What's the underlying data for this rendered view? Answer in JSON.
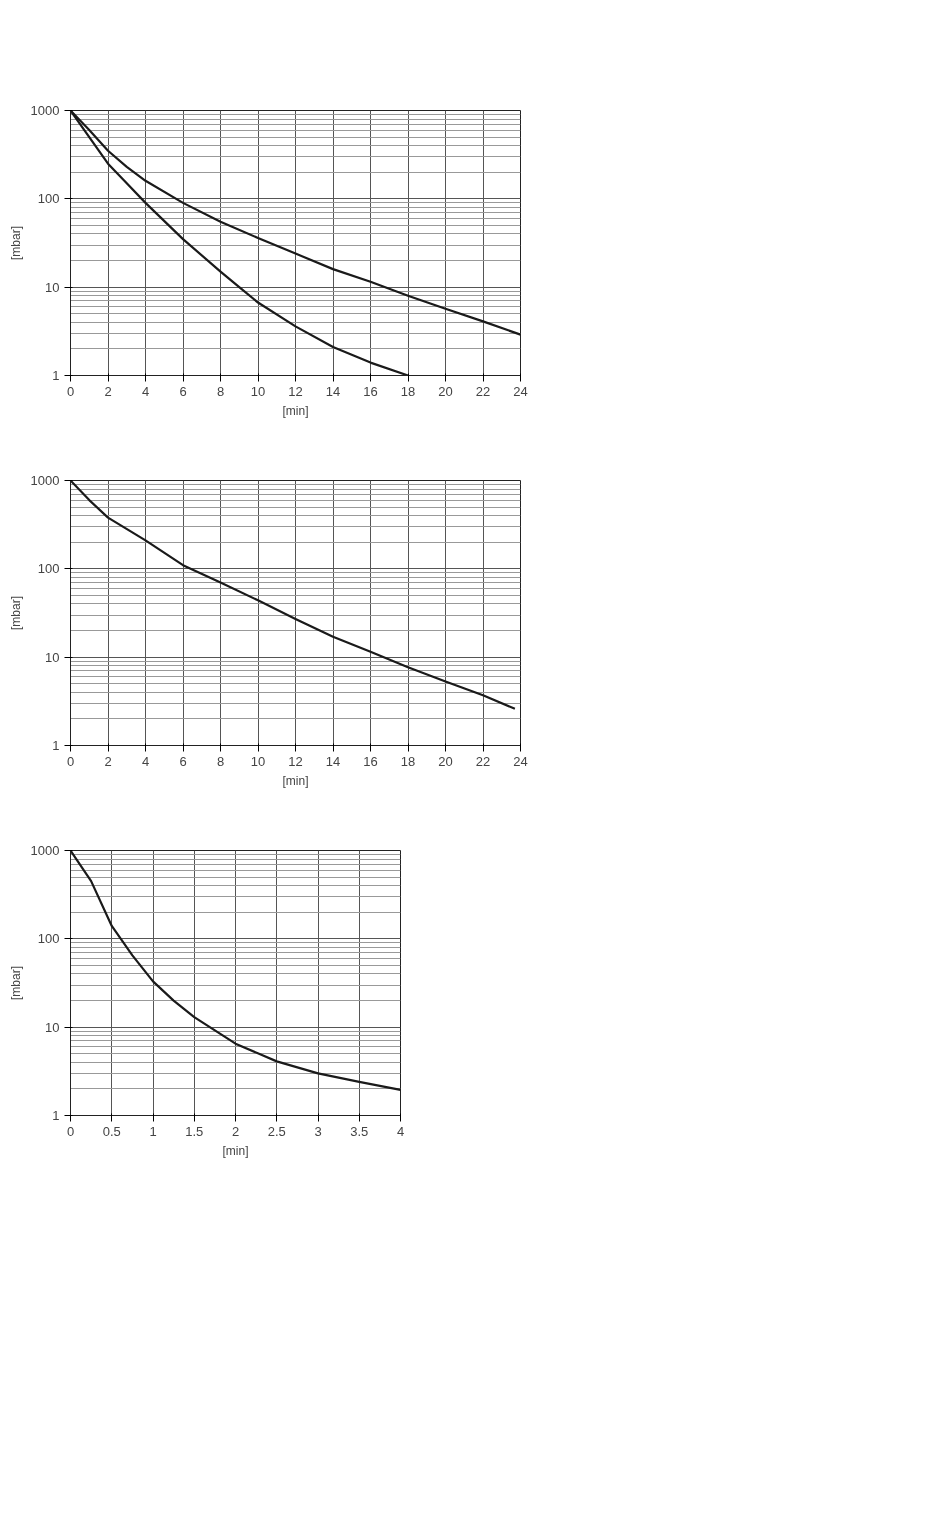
{
  "chart_data": [
    {
      "type": "line",
      "xlabel": "[min]",
      "ylabel": "[mbar]",
      "log": "y",
      "grid": true,
      "xlim": [
        0,
        24
      ],
      "ylim": [
        1,
        1000
      ],
      "xticks": [
        0,
        2,
        4,
        6,
        8,
        10,
        12,
        14,
        16,
        18,
        20,
        22,
        24
      ],
      "yticks": [
        1,
        10,
        100,
        1000
      ],
      "series": [
        {
          "color": "#1a1a1a",
          "x": [
            0,
            1,
            2,
            3,
            4,
            6,
            8,
            10,
            12,
            14,
            16,
            18,
            20,
            22,
            24
          ],
          "values": [
            1000,
            600,
            350,
            230,
            160,
            90,
            55,
            36,
            24,
            16,
            11.5,
            8,
            5.7,
            4.1,
            2.9
          ]
        },
        {
          "color": "#1a1a1a",
          "x": [
            0,
            1,
            2,
            3,
            4,
            6,
            8,
            9,
            10,
            12,
            14,
            16,
            18
          ],
          "values": [
            1000,
            500,
            250,
            150,
            90,
            35,
            15,
            10,
            6.7,
            3.6,
            2.1,
            1.4,
            1.0
          ]
        }
      ]
    },
    {
      "type": "line",
      "xlabel": "[min]",
      "ylabel": "[mbar]",
      "log": "y",
      "grid": true,
      "xlim": [
        0,
        24
      ],
      "ylim": [
        1,
        1000
      ],
      "xticks": [
        0,
        2,
        4,
        6,
        8,
        10,
        12,
        14,
        16,
        18,
        20,
        22,
        24
      ],
      "yticks": [
        1,
        10,
        100,
        1000
      ],
      "series": [
        {
          "color": "#1a1a1a",
          "x": [
            0,
            1,
            2,
            4,
            6,
            8,
            10,
            12,
            14,
            16,
            18,
            20,
            22,
            23.7
          ],
          "values": [
            1000,
            600,
            380,
            210,
            110,
            70,
            44,
            27,
            17,
            11.5,
            7.7,
            5.3,
            3.7,
            2.6
          ]
        }
      ]
    },
    {
      "type": "line",
      "xlabel": "[min]",
      "ylabel": "[mbar]",
      "log": "y",
      "grid": true,
      "xlim": [
        0,
        4
      ],
      "ylim": [
        1,
        1000
      ],
      "xticks": [
        0,
        0.5,
        1,
        1.5,
        2,
        2.5,
        3,
        3.5,
        4
      ],
      "yticks": [
        1,
        10,
        100,
        1000
      ],
      "series": [
        {
          "color": "#1a1a1a",
          "x": [
            0,
            0.25,
            0.5,
            0.75,
            1,
            1.25,
            1.5,
            2,
            2.5,
            3,
            3.5,
            4
          ],
          "values": [
            1000,
            450,
            140,
            65,
            33,
            20,
            13,
            6.5,
            4.1,
            3.0,
            2.4,
            1.95
          ]
        }
      ]
    }
  ]
}
